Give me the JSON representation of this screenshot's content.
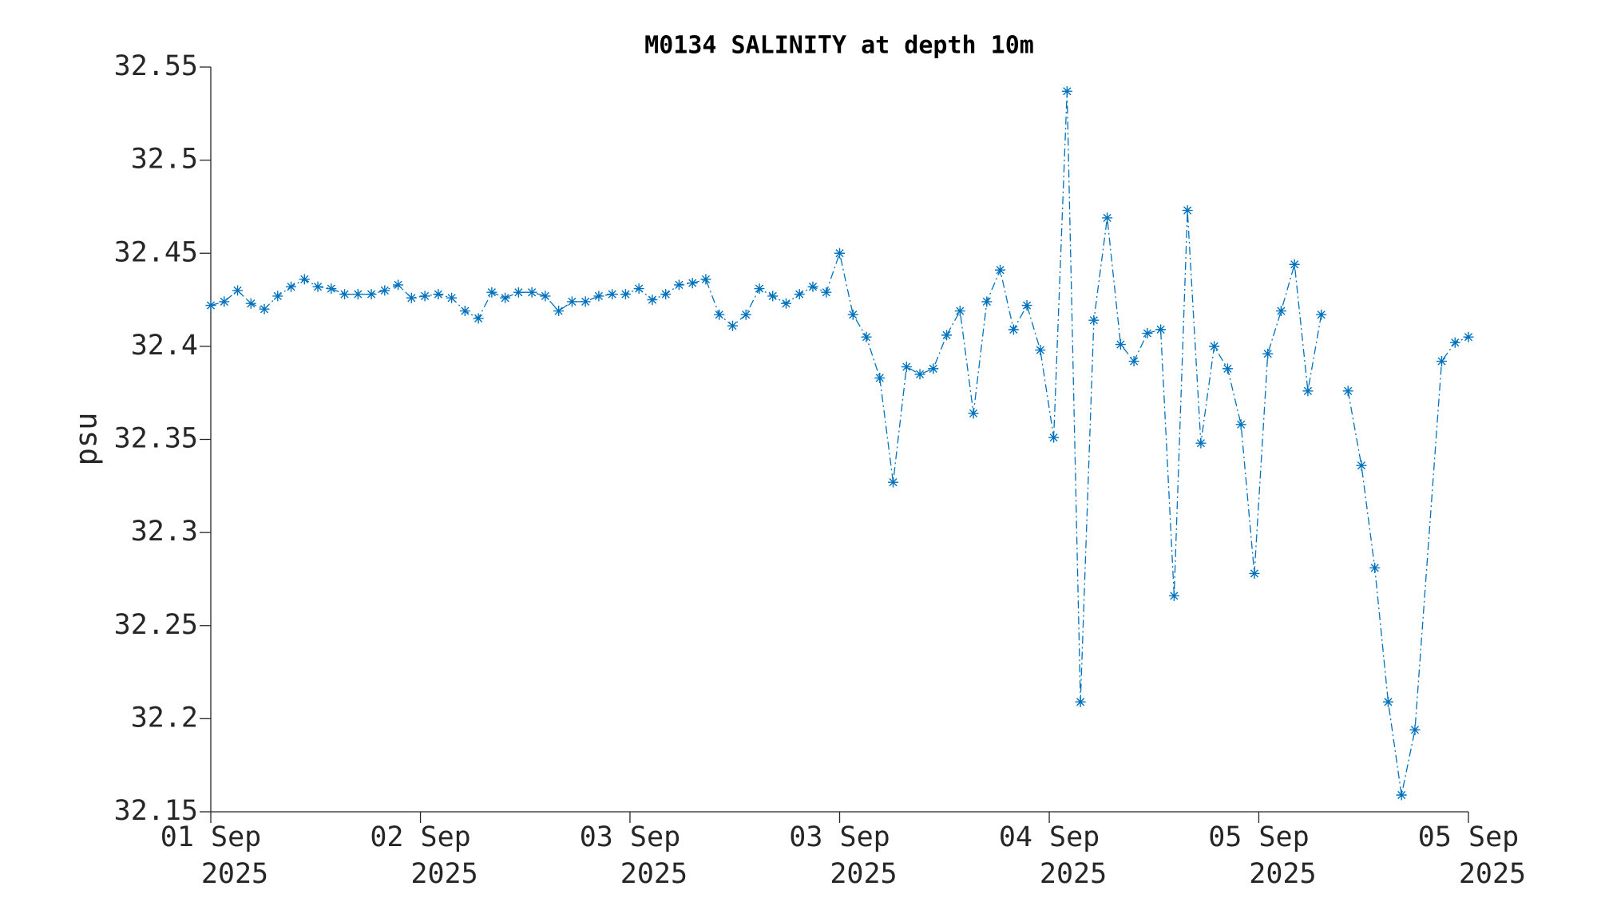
{
  "chart_data": {
    "type": "line",
    "title": "M0134 SALINITY at depth 10m",
    "y_label": "psu",
    "x": [
      0,
      1,
      2,
      3,
      4,
      5,
      6,
      7,
      8,
      9,
      10,
      11,
      12,
      13,
      14,
      15,
      16,
      17,
      18,
      19,
      20,
      21,
      22,
      23,
      24,
      25,
      26,
      27,
      28,
      29,
      30,
      31,
      32,
      33,
      34,
      35,
      36,
      37,
      38,
      39,
      40,
      41,
      42,
      43,
      44,
      45,
      46,
      47,
      48,
      49,
      50,
      51,
      52,
      53,
      54,
      55,
      56,
      57,
      58,
      59,
      60,
      61,
      62,
      63,
      64,
      65,
      66,
      67,
      68,
      69,
      70,
      71,
      72,
      73,
      74,
      75,
      76,
      77,
      78,
      79,
      80,
      81,
      82,
      83,
      84,
      85,
      86,
      87,
      88,
      89,
      90,
      92,
      93,
      94
    ],
    "series": [
      {
        "name": "M0134 salinity",
        "color": "#0072bd",
        "line_style": "dash-dot",
        "marker": "asterisk",
        "values": [
          32.422,
          32.424,
          32.43,
          32.423,
          32.42,
          32.427,
          32.432,
          32.436,
          32.432,
          32.431,
          32.428,
          32.428,
          32.428,
          32.43,
          32.433,
          32.426,
          32.427,
          32.428,
          32.426,
          32.419,
          32.415,
          32.429,
          32.426,
          32.429,
          32.429,
          32.427,
          32.419,
          32.424,
          32.424,
          32.427,
          32.428,
          32.428,
          32.431,
          32.425,
          32.428,
          32.433,
          32.434,
          32.436,
          32.417,
          32.411,
          32.417,
          32.431,
          32.427,
          32.423,
          32.428,
          32.432,
          32.429,
          32.45,
          32.417,
          32.405,
          32.383,
          32.327,
          32.389,
          32.385,
          32.388,
          32.406,
          32.419,
          32.364,
          32.424,
          32.441,
          32.409,
          32.422,
          32.398,
          32.351,
          32.537,
          32.209,
          32.414,
          32.469,
          32.401,
          32.392,
          32.407,
          32.409,
          32.266,
          32.473,
          32.348,
          32.4,
          32.388,
          32.358,
          32.278,
          32.396,
          32.419,
          32.444,
          32.376,
          32.417,
          null,
          32.376,
          32.336,
          32.281,
          32.209,
          32.159,
          32.194,
          32.392,
          32.402,
          32.405
        ]
      }
    ],
    "xlim": [
      0,
      94
    ],
    "xticks": [
      {
        "value": 0,
        "label": [
          "01 Sep",
          "2025"
        ]
      },
      {
        "value": 15.67,
        "label": [
          "02 Sep",
          "2025"
        ]
      },
      {
        "value": 31.33,
        "label": [
          "03 Sep",
          "2025"
        ]
      },
      {
        "value": 47,
        "label": [
          "03 Sep",
          "2025"
        ]
      },
      {
        "value": 62.67,
        "label": [
          "04 Sep",
          "2025"
        ]
      },
      {
        "value": 78.33,
        "label": [
          "05 Sep",
          "2025"
        ]
      },
      {
        "value": 94,
        "label": [
          "05 Sep",
          "2025"
        ]
      }
    ],
    "ylim": [
      32.15,
      32.55
    ],
    "yticks": [
      32.15,
      32.2,
      32.25,
      32.3,
      32.35,
      32.4,
      32.45,
      32.5,
      32.55
    ],
    "grid": false
  }
}
